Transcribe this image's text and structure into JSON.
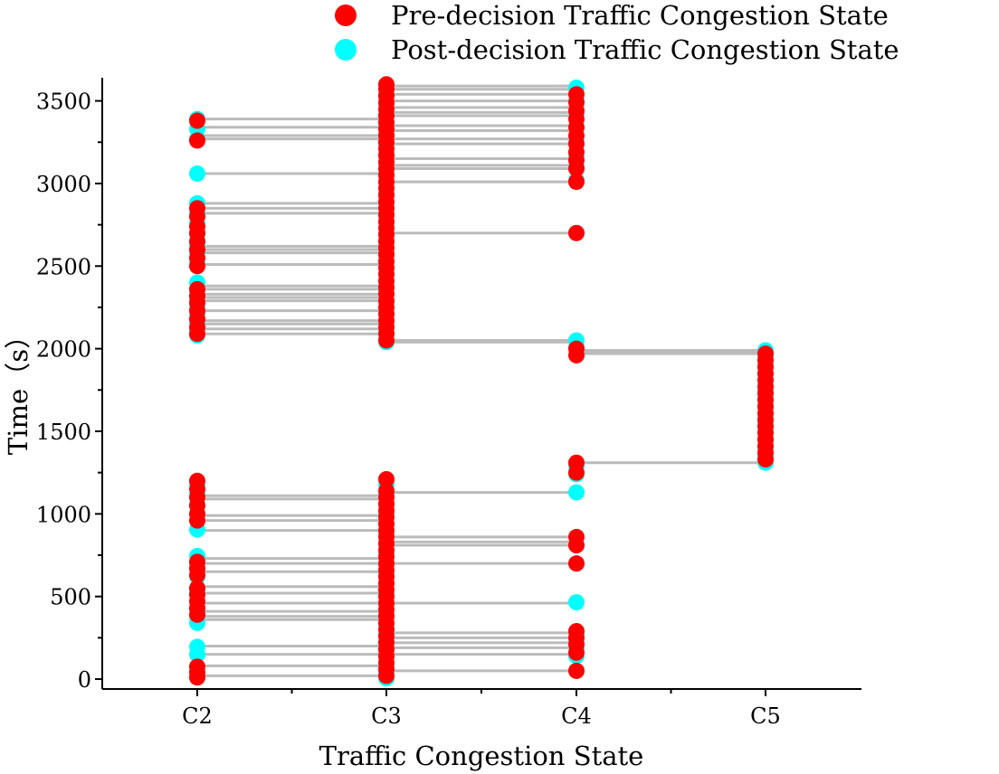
{
  "chart_data": {
    "type": "scatter",
    "xlabel": "Traffic Congestion State",
    "ylabel": "Time（s）",
    "categories": [
      "C2",
      "C3",
      "C4",
      "C5"
    ],
    "yticks": [
      0,
      500,
      1000,
      1500,
      2000,
      2500,
      3000,
      3500
    ],
    "ylim": [
      -60,
      3640
    ],
    "legend": {
      "position": "top-right",
      "entries": [
        {
          "name": "Pre-decision Traffic Congestion State",
          "color": "#ff0000"
        },
        {
          "name": "Post-decision Traffic Congestion State",
          "color": "#00ffff"
        }
      ]
    },
    "transition_color": "#bbbbbb",
    "post_series": {
      "C2": [
        10,
        45,
        75,
        150,
        195,
        340,
        380,
        420,
        530,
        620,
        700,
        745,
        905,
        1000,
        1060,
        1120,
        1180,
        2080,
        2120,
        2160,
        2210,
        2260,
        2310,
        2350,
        2400,
        2520,
        2580,
        2630,
        2690,
        2760,
        2820,
        2880,
        3060,
        3270,
        3330,
        3390
      ],
      "C3": [
        5,
        40,
        80,
        140,
        190,
        230,
        280,
        330,
        390,
        460,
        520,
        580,
        640,
        700,
        760,
        820,
        880,
        940,
        1000,
        1060,
        1120,
        1180,
        2040,
        2100,
        2160,
        2220,
        2280,
        2340,
        2400,
        2460,
        2520,
        2580,
        2640,
        2700,
        2760,
        2820,
        2880,
        2940,
        3000,
        3060,
        3120,
        3180,
        3240,
        3300,
        3360,
        3420,
        3480,
        3540,
        3590
      ],
      "C4": [
        50,
        140,
        190,
        240,
        280,
        465,
        700,
        810,
        860,
        1130,
        1240,
        1290,
        2010,
        2050,
        2700,
        3020,
        3100,
        3170,
        3250,
        3340,
        3420,
        3500,
        3580
      ],
      "C5": [
        1310,
        1350,
        1400,
        1450,
        1500,
        1550,
        1600,
        1650,
        1700,
        1750,
        1800,
        1850,
        1900,
        1950,
        1990
      ]
    },
    "pre_series": {
      "C2": [
        10,
        40,
        75,
        390,
        430,
        470,
        510,
        550,
        630,
        670,
        710,
        960,
        1000,
        1050,
        1100,
        1150,
        1200,
        2090,
        2130,
        2180,
        2230,
        2280,
        2320,
        2360,
        2500,
        2550,
        2600,
        2650,
        2700,
        2740,
        2800,
        2850,
        3260,
        3380
      ],
      "C3": [
        20,
        60,
        100,
        140,
        180,
        220,
        260,
        300,
        340,
        380,
        420,
        460,
        500,
        540,
        580,
        620,
        660,
        700,
        740,
        780,
        820,
        860,
        900,
        940,
        980,
        1020,
        1060,
        1100,
        1140,
        1210,
        2050,
        2090,
        2130,
        2170,
        2210,
        2250,
        2290,
        2330,
        2370,
        2410,
        2450,
        2490,
        2530,
        2570,
        2610,
        2650,
        2690,
        2730,
        2770,
        2810,
        2850,
        2890,
        2930,
        2970,
        3010,
        3050,
        3090,
        3130,
        3170,
        3210,
        3250,
        3290,
        3330,
        3370,
        3410,
        3450,
        3490,
        3530,
        3570,
        3600
      ],
      "C4": [
        50,
        160,
        210,
        250,
        290,
        700,
        810,
        860,
        1250,
        1310,
        1960,
        2000,
        2700,
        3010,
        3090,
        3140,
        3190,
        3240,
        3290,
        3340,
        3390,
        3440,
        3490,
        3540
      ],
      "C5": [
        1330,
        1370,
        1410,
        1450,
        1490,
        1530,
        1570,
        1610,
        1650,
        1690,
        1730,
        1770,
        1810,
        1850,
        1890,
        1930,
        1970
      ]
    },
    "transitions": [
      {
        "from": "C2",
        "to": "C3",
        "times": [
          20,
          80,
          150,
          200,
          360,
          380,
          410,
          460,
          520,
          560,
          650,
          700,
          730,
          900,
          960,
          990,
          1090,
          1110,
          2090,
          2120,
          2150,
          2170,
          2230,
          2290,
          2310,
          2330,
          2360,
          2380,
          2510,
          2580,
          2600,
          2620,
          2820,
          2850,
          2880,
          3060,
          3270,
          3290,
          3340,
          3390
        ]
      },
      {
        "from": "C3",
        "to": "C4",
        "times": [
          50,
          150,
          190,
          220,
          250,
          280,
          460,
          700,
          810,
          830,
          860,
          1130,
          2040,
          2050,
          2700,
          3010,
          3090,
          3110,
          3150,
          3240,
          3270,
          3320,
          3350,
          3410,
          3430,
          3460,
          3500,
          3540,
          3570,
          3590
        ]
      },
      {
        "from": "C4",
        "to": "C5",
        "times": [
          1310,
          1970,
          1980,
          1990
        ]
      }
    ]
  }
}
